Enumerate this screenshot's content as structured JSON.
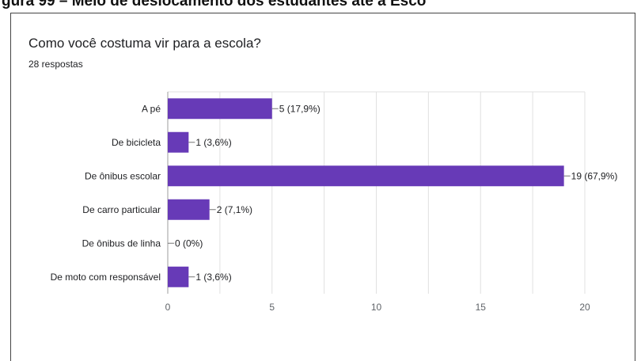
{
  "header": {
    "caption": "gura 99 – Meio de deslocamento dos estudantes até a Esco"
  },
  "form": {
    "question": "Como você costuma vir para a escola?",
    "responses": "28 respostas"
  },
  "colors": {
    "bar": "#673ab7",
    "grid": "#e0e0e0",
    "axis": "#9e9e9e",
    "text": "#202124"
  },
  "chart_data": {
    "type": "bar",
    "orientation": "horizontal",
    "categories": [
      "A pé",
      "De bicicleta",
      "De ônibus escolar",
      "De carro particular",
      "De ônibus de linha",
      "De moto com responsável"
    ],
    "values": [
      5,
      1,
      19,
      2,
      0,
      1
    ],
    "data_labels": [
      "5 (17,9%)",
      "1 (3,6%)",
      "19 (67,9%)",
      "2 (7,1%)",
      "0 (0%)",
      "1 (3,6%)"
    ],
    "xlim": [
      0,
      20
    ],
    "xticks": [
      0,
      5,
      10,
      15,
      20
    ],
    "grid": true,
    "legend": "none"
  }
}
